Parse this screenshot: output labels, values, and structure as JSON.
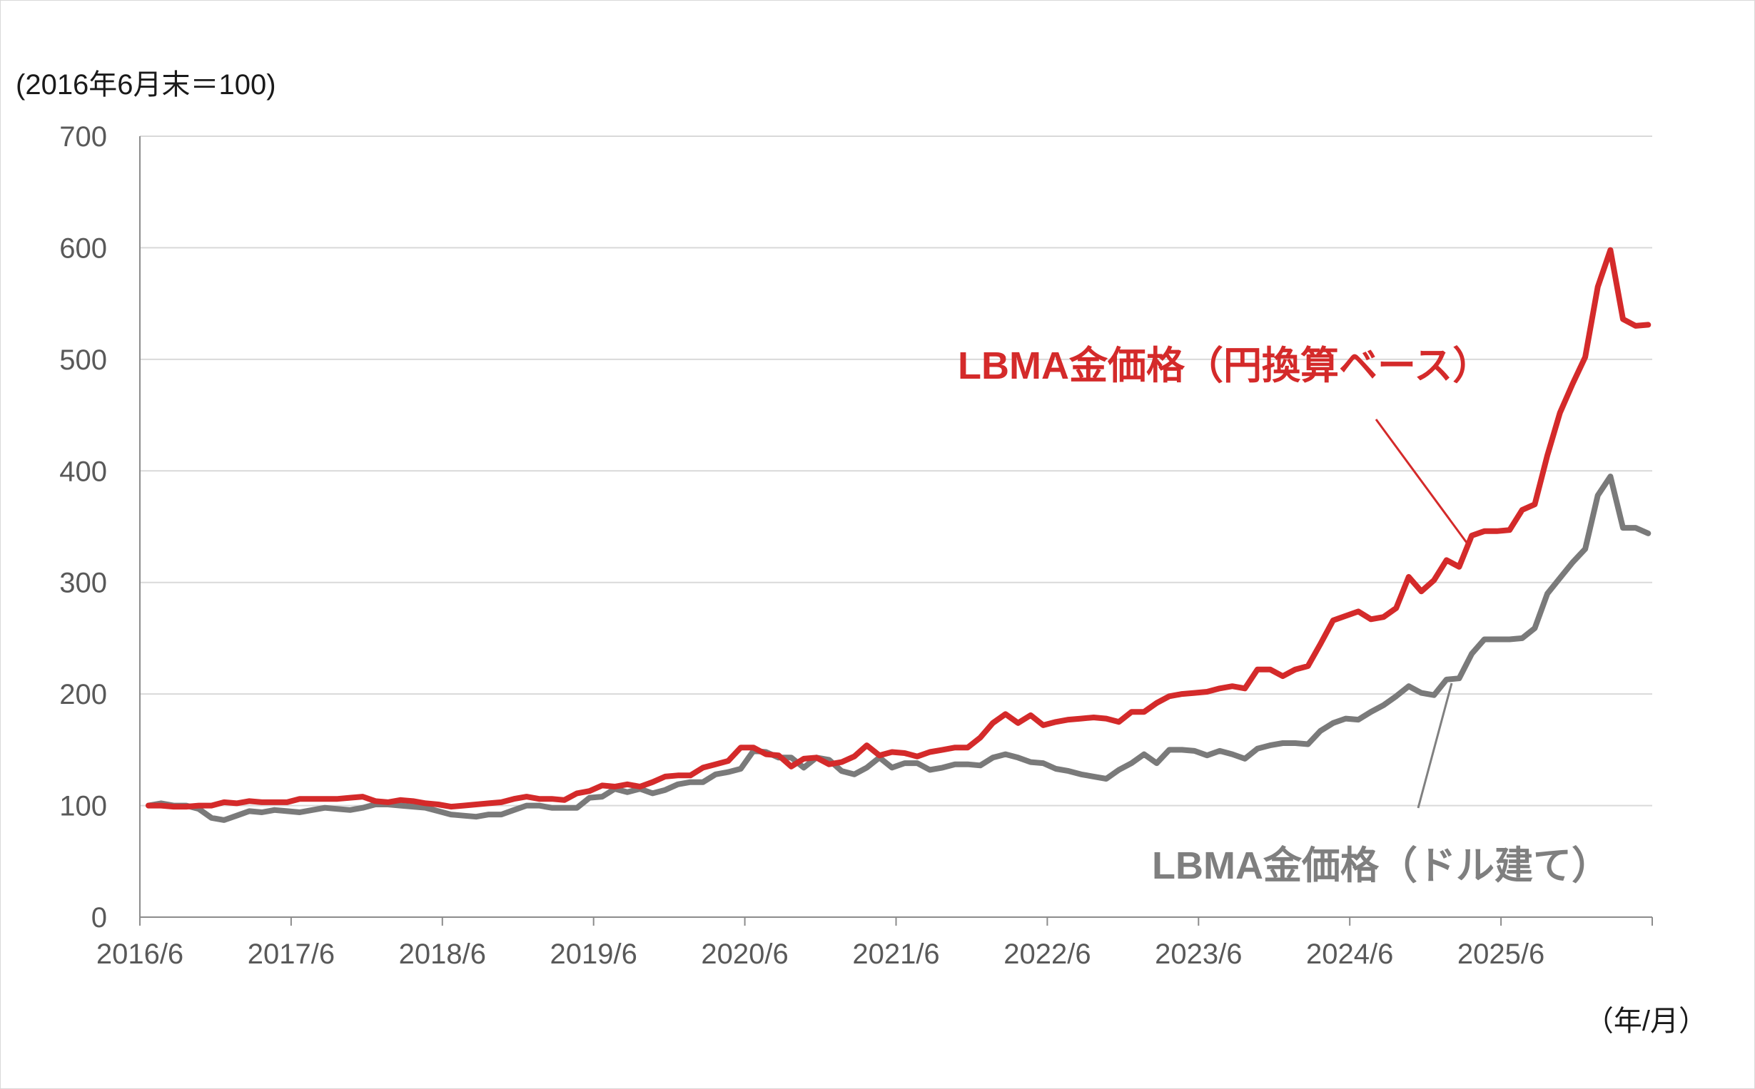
{
  "chart_data": {
    "type": "line",
    "ylabel": "(2016年6月末＝100)",
    "xlabel": "（年/月）",
    "ylim": [
      0,
      700
    ],
    "yticks": [
      0,
      100,
      200,
      300,
      400,
      500,
      600,
      700
    ],
    "xticks": [
      "2016/6",
      "2017/6",
      "2018/6",
      "2019/6",
      "2020/6",
      "2021/6",
      "2022/6",
      "2023/6",
      "2024/6",
      "2025/6"
    ],
    "grid": true,
    "x_start": "2016/6",
    "series": [
      {
        "name": "LBMA金価格（円換算ベース）",
        "color": "#d42a2a",
        "values": [
          100,
          100,
          99,
          99,
          100,
          100,
          103,
          102,
          104,
          103,
          103,
          103,
          106,
          106,
          106,
          106,
          107,
          108,
          104,
          103,
          105,
          104,
          102,
          101,
          99,
          100,
          101,
          102,
          103,
          106,
          108,
          106,
          106,
          105,
          111,
          113,
          118,
          117,
          119,
          117,
          121,
          126,
          127,
          127,
          134,
          137,
          140,
          152,
          152,
          146,
          145,
          135,
          142,
          143,
          137,
          139,
          144,
          154,
          145,
          148,
          147,
          144,
          148,
          150,
          152,
          152,
          161,
          174,
          182,
          174,
          181,
          172,
          175,
          177,
          178,
          179,
          178,
          175,
          184,
          184,
          192,
          198,
          200,
          201,
          202,
          205,
          207,
          205,
          222,
          222,
          216,
          222,
          225,
          245,
          266,
          270,
          274,
          267,
          269,
          277,
          305,
          292,
          302,
          320,
          314,
          342,
          346,
          346,
          347,
          365,
          370,
          414,
          452,
          478,
          502,
          565,
          598,
          536,
          530,
          531
        ]
      },
      {
        "name": "LBMA金価格（ドル建て）",
        "color": "#7a7a7a",
        "values": [
          100,
          102,
          100,
          100,
          97,
          89,
          87,
          91,
          95,
          94,
          96,
          95,
          94,
          96,
          98,
          97,
          96,
          98,
          101,
          101,
          100,
          99,
          98,
          95,
          92,
          91,
          90,
          92,
          92,
          96,
          100,
          100,
          98,
          98,
          98,
          107,
          108,
          115,
          112,
          115,
          111,
          114,
          119,
          121,
          121,
          128,
          130,
          133,
          149,
          148,
          143,
          143,
          134,
          143,
          141,
          131,
          128,
          134,
          143,
          134,
          138,
          138,
          132,
          134,
          137,
          137,
          136,
          143,
          146,
          143,
          139,
          138,
          133,
          131,
          128,
          126,
          124,
          132,
          138,
          146,
          138,
          150,
          150,
          149,
          145,
          149,
          146,
          142,
          151,
          154,
          156,
          156,
          155,
          167,
          174,
          178,
          177,
          184,
          190,
          198,
          207,
          201,
          199,
          213,
          214,
          236,
          249,
          249,
          249,
          250,
          259,
          290,
          304,
          318,
          330,
          378,
          395,
          349,
          349,
          344
        ]
      }
    ],
    "labels": {
      "red_label": "LBMA金価格（円換算ベース）",
      "gray_label": "LBMA金価格（ドル建て）"
    }
  }
}
